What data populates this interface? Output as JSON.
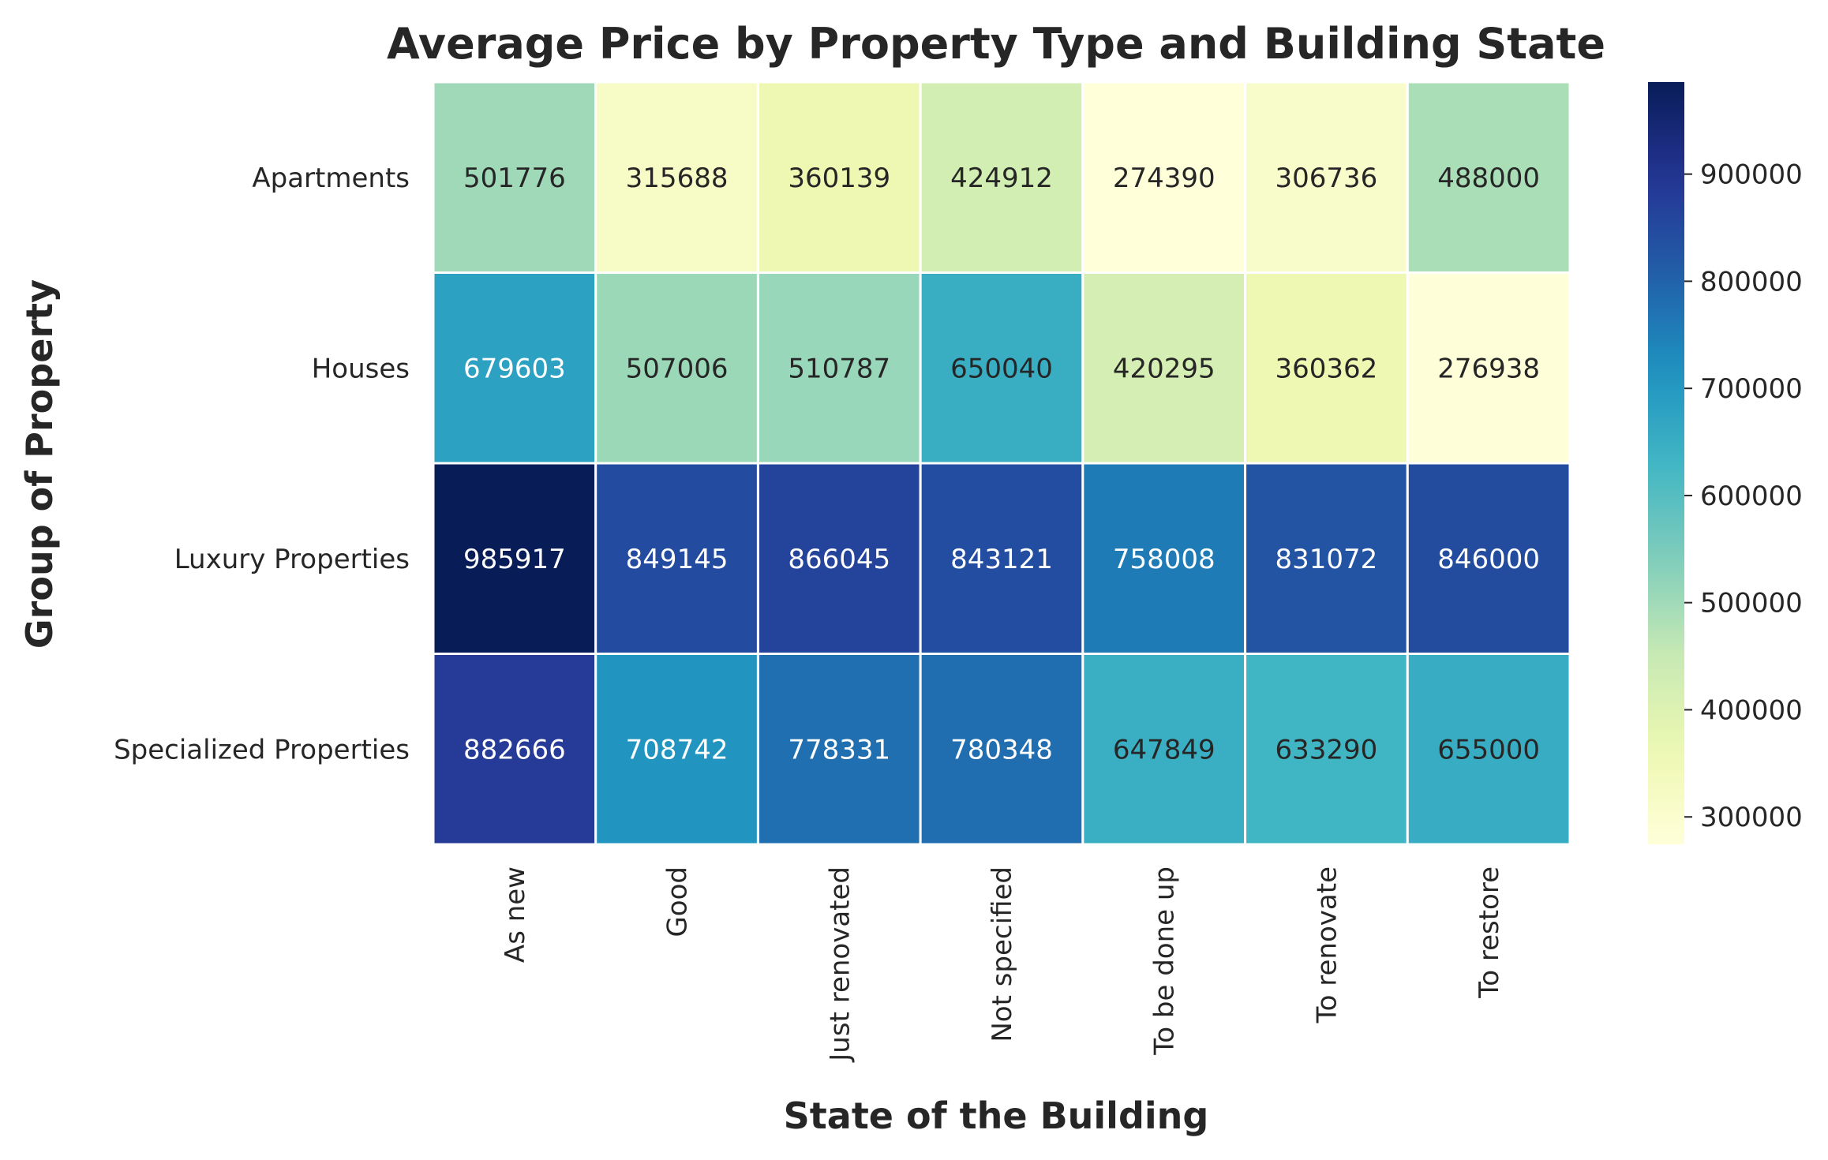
{
  "chart_data": {
    "type": "heatmap",
    "title": "Average Price by Property Type and Building State",
    "xlabel": "State of the Building",
    "ylabel": "Group of Property",
    "x_categories": [
      "As new",
      "Good",
      "Just renovated",
      "Not specified",
      "To be done up",
      "To renovate",
      "To restore"
    ],
    "y_categories": [
      "Apartments",
      "Houses",
      "Luxury Properties",
      "Specialized Properties"
    ],
    "values": [
      [
        501776,
        315688,
        360139,
        424912,
        274390,
        306736,
        488000
      ],
      [
        679603,
        507006,
        510787,
        650040,
        420295,
        360362,
        276938
      ],
      [
        985917,
        849145,
        866045,
        843121,
        758008,
        831072,
        846000
      ],
      [
        882666,
        708742,
        778331,
        780348,
        647849,
        633290,
        655000
      ]
    ],
    "colormap": "YlGnBu",
    "color_range": [
      274390,
      985917
    ],
    "colorbar_ticks": [
      300000,
      400000,
      500000,
      600000,
      700000,
      800000,
      900000
    ],
    "grid": false,
    "cell_separator_color": "#ffffff"
  }
}
